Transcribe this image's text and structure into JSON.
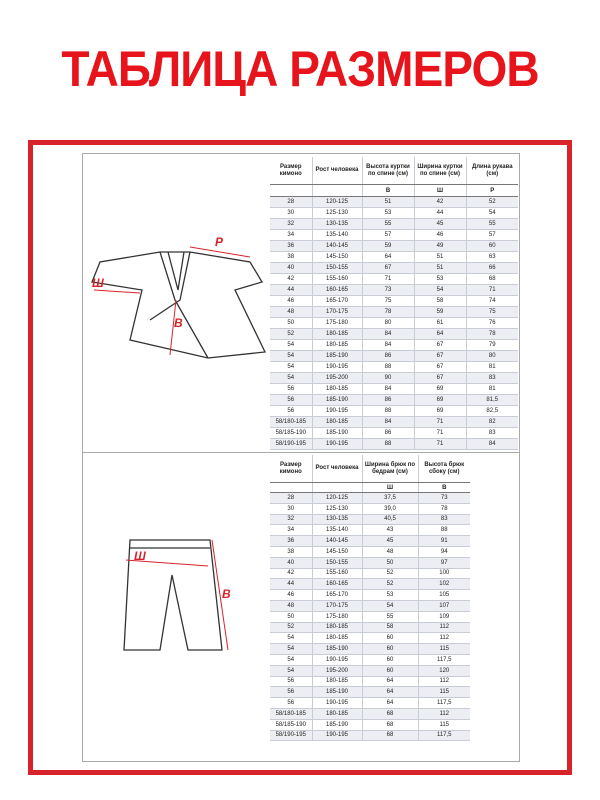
{
  "header": {
    "title": "ТАБЛИЦА РАЗМЕРОВ"
  },
  "diagrams": {
    "jacket_labels": [
      "Р",
      "Ш",
      "В"
    ],
    "pants_labels": [
      "Ш",
      "В"
    ]
  },
  "jacket_table": {
    "headers": [
      "Размер кимоно",
      "Рост человека",
      "Высота куртки по спине (см)",
      "Ширина куртки по спине (см)",
      "Длина рукава (см)"
    ],
    "subheaders": [
      "В",
      "Ш",
      "Р"
    ],
    "rows": [
      [
        "28",
        "120-125",
        "51",
        "42",
        "52"
      ],
      [
        "30",
        "125-130",
        "53",
        "44",
        "54"
      ],
      [
        "32",
        "130-135",
        "55",
        "45",
        "55"
      ],
      [
        "34",
        "135-140",
        "57",
        "46",
        "57"
      ],
      [
        "36",
        "140-145",
        "59",
        "49",
        "60"
      ],
      [
        "38",
        "145-150",
        "64",
        "51",
        "63"
      ],
      [
        "40",
        "150-155",
        "67",
        "51",
        "66"
      ],
      [
        "42",
        "155-160",
        "71",
        "53",
        "68"
      ],
      [
        "44",
        "160-165",
        "73",
        "54",
        "71"
      ],
      [
        "46",
        "165-170",
        "75",
        "58",
        "74"
      ],
      [
        "48",
        "170-175",
        "78",
        "59",
        "75"
      ],
      [
        "50",
        "175-180",
        "80",
        "61",
        "76"
      ],
      [
        "52",
        "180-185",
        "84",
        "64",
        "78"
      ],
      [
        "54",
        "180-185",
        "84",
        "67",
        "79"
      ],
      [
        "54",
        "185-190",
        "86",
        "67",
        "80"
      ],
      [
        "54",
        "190-195",
        "88",
        "67",
        "81"
      ],
      [
        "54",
        "195-200",
        "90",
        "67",
        "83"
      ],
      [
        "56",
        "180-185",
        "84",
        "69",
        "81"
      ],
      [
        "56",
        "185-190",
        "86",
        "69",
        "81,5"
      ],
      [
        "56",
        "190-195",
        "88",
        "69",
        "82,5"
      ],
      [
        "58/180-185",
        "180-185",
        "84",
        "71",
        "82"
      ],
      [
        "58/185-190",
        "185-190",
        "86",
        "71",
        "83"
      ],
      [
        "58/190-195",
        "190-195",
        "88",
        "71",
        "84"
      ]
    ]
  },
  "pants_table": {
    "headers": [
      "Размер кимоно",
      "Рост человека",
      "Ширина брюк по бедрам (см)",
      "Высота брюк сбоку (см)"
    ],
    "subheaders": [
      "Ш",
      "В"
    ],
    "rows": [
      [
        "28",
        "120-125",
        "37,5",
        "73"
      ],
      [
        "30",
        "125-130",
        "39,0",
        "78"
      ],
      [
        "32",
        "130-135",
        "40,5",
        "83"
      ],
      [
        "34",
        "135-140",
        "43",
        "88"
      ],
      [
        "36",
        "140-145",
        "45",
        "91"
      ],
      [
        "38",
        "145-150",
        "48",
        "94"
      ],
      [
        "40",
        "150-155",
        "50",
        "97"
      ],
      [
        "42",
        "155-160",
        "52",
        "100"
      ],
      [
        "44",
        "160-165",
        "52",
        "102"
      ],
      [
        "46",
        "165-170",
        "53",
        "105"
      ],
      [
        "48",
        "170-175",
        "54",
        "107"
      ],
      [
        "50",
        "175-180",
        "55",
        "109"
      ],
      [
        "52",
        "180-185",
        "58",
        "112"
      ],
      [
        "54",
        "180-185",
        "60",
        "112"
      ],
      [
        "54",
        "185-190",
        "60",
        "115"
      ],
      [
        "54",
        "190-195",
        "60",
        "117,5"
      ],
      [
        "54",
        "195-200",
        "60",
        "120"
      ],
      [
        "56",
        "180-185",
        "64",
        "112"
      ],
      [
        "56",
        "185-190",
        "64",
        "115"
      ],
      [
        "56",
        "190-195",
        "64",
        "117,5"
      ],
      [
        "58/180-185",
        "180-185",
        "68",
        "112"
      ],
      [
        "58/185-190",
        "185-190",
        "68",
        "115"
      ],
      [
        "58/190-195",
        "190-195",
        "68",
        "117,5"
      ]
    ]
  }
}
